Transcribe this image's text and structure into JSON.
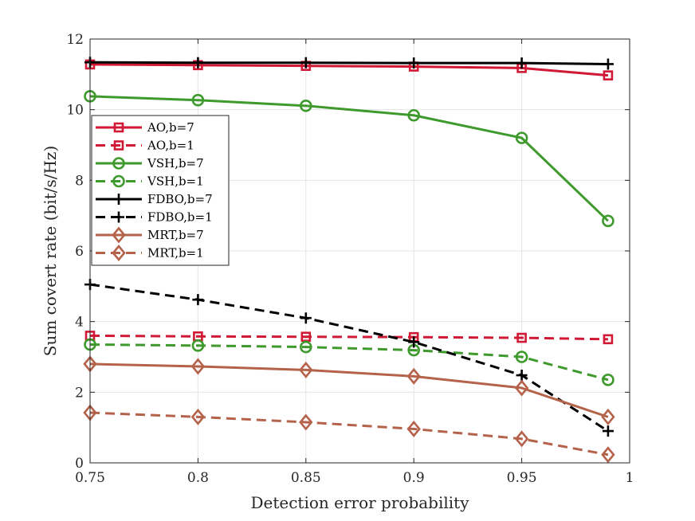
{
  "chart_data": {
    "type": "line",
    "title": "",
    "xlabel": "Detection error probability",
    "ylabel": "Sum covert rate (bit/s/Hz)",
    "xlim": [
      0.75,
      1
    ],
    "ylim": [
      0,
      12
    ],
    "xticks": [
      0.75,
      0.8,
      0.85,
      0.9,
      0.95,
      1
    ],
    "xtick_labels": [
      "0.75",
      "0.8",
      "0.85",
      "0.9",
      "0.95",
      "1"
    ],
    "yticks": [
      0,
      2,
      4,
      6,
      8,
      10,
      12
    ],
    "ytick_labels": [
      "0",
      "2",
      "4",
      "6",
      "8",
      "10",
      "12"
    ],
    "grid": true,
    "legend_position": "left",
    "x": [
      0.75,
      0.8,
      0.85,
      0.9,
      0.95,
      0.99
    ],
    "series": [
      {
        "name": "AO,b=7",
        "color": "#d01a35",
        "dash": "solid",
        "marker": "square",
        "values": [
          11.28,
          11.26,
          11.24,
          11.22,
          11.18,
          10.97
        ]
      },
      {
        "name": "AO,b=1",
        "color": "#d01a35",
        "dash": "dashed",
        "marker": "square",
        "values": [
          3.6,
          3.58,
          3.57,
          3.56,
          3.54,
          3.5
        ]
      },
      {
        "name": "VSH,b=7",
        "color": "#3f9a2e",
        "dash": "solid",
        "marker": "circle",
        "values": [
          10.38,
          10.27,
          10.11,
          9.84,
          9.2,
          6.85
        ]
      },
      {
        "name": "VSH,b=1",
        "color": "#3f9a2e",
        "dash": "dashed",
        "marker": "circle",
        "values": [
          3.35,
          3.32,
          3.28,
          3.19,
          3.0,
          2.35
        ]
      },
      {
        "name": "FDBO,b=7",
        "color": "#000000",
        "dash": "solid",
        "marker": "plus",
        "values": [
          11.34,
          11.33,
          11.33,
          11.32,
          11.32,
          11.29
        ]
      },
      {
        "name": "FDBO,b=1",
        "color": "#000000",
        "dash": "dashed",
        "marker": "plus",
        "values": [
          5.05,
          4.62,
          4.1,
          3.42,
          2.48,
          0.9
        ]
      },
      {
        "name": "MRT,b=7",
        "color": "#b5624b",
        "dash": "solid",
        "marker": "diamond",
        "values": [
          2.8,
          2.73,
          2.63,
          2.45,
          2.12,
          1.3
        ]
      },
      {
        "name": "MRT,b=1",
        "color": "#b5624b",
        "dash": "dashed",
        "marker": "diamond",
        "values": [
          1.42,
          1.3,
          1.15,
          0.96,
          0.68,
          0.23
        ]
      }
    ]
  }
}
